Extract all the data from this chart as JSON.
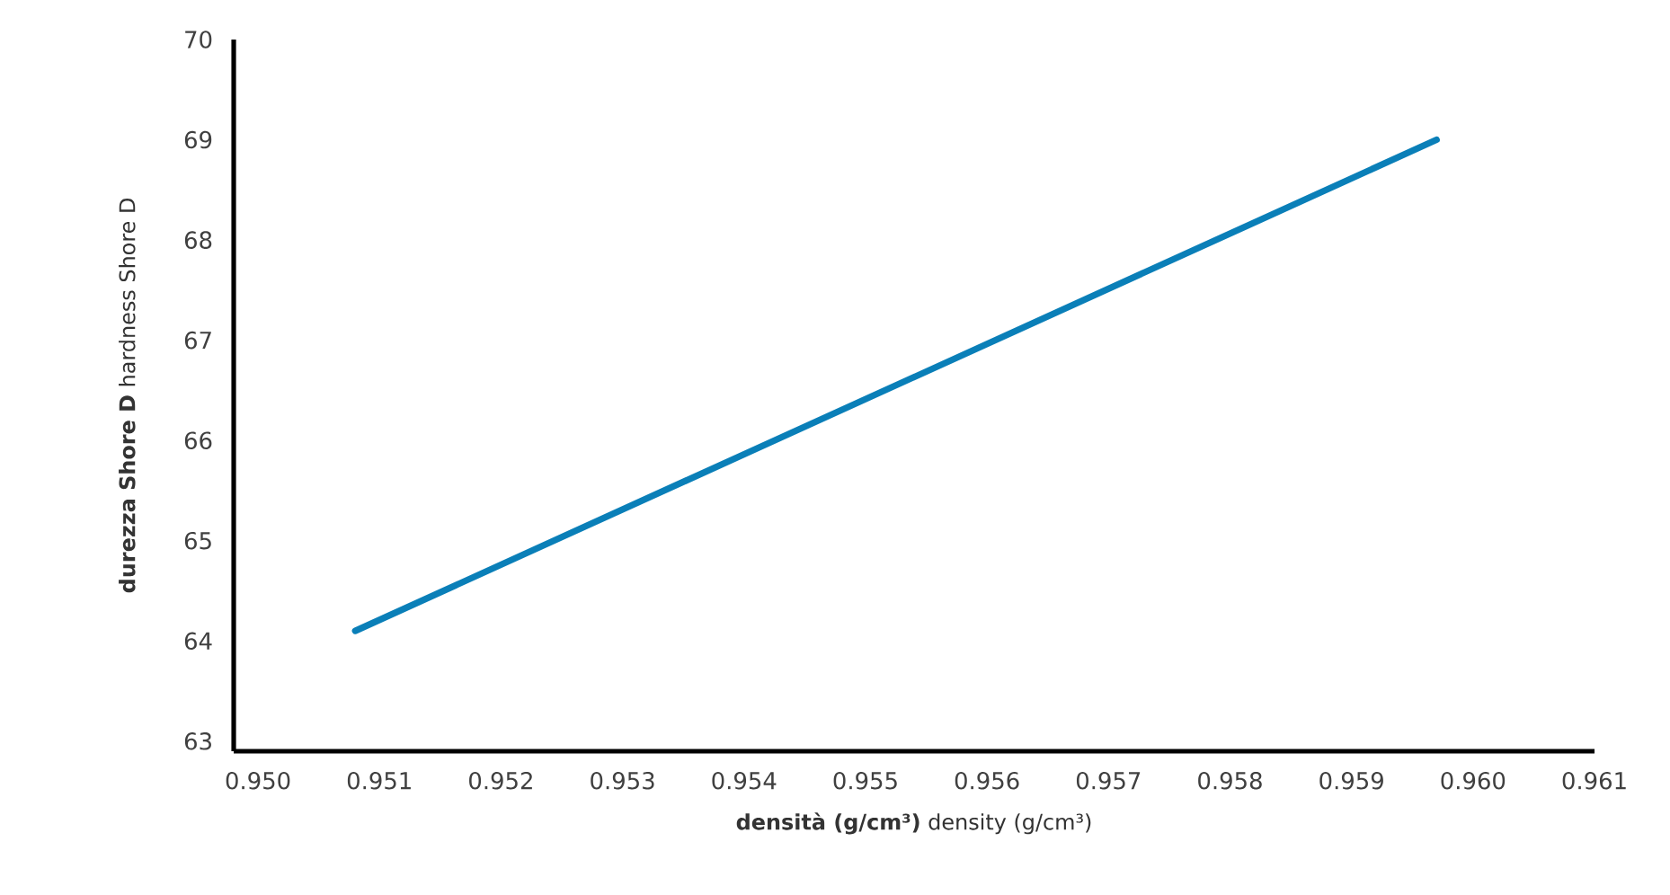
{
  "chart_data": {
    "type": "line",
    "xlabel": "**densità (g/cm³)**  density (g/cm³)",
    "ylabel": "**durezza Shore D**  hardness Shore D",
    "x": [
      0.9508,
      0.9597
    ],
    "series": [
      {
        "color": "#0a7fb8",
        "values": [
          64.1,
          69.0
        ]
      }
    ],
    "xlim": [
      0.9498,
      0.961
    ],
    "ylim": [
      62.9,
      70
    ],
    "xticks": [
      {
        "value": 0.95,
        "label": "0.950"
      },
      0.951,
      0.952,
      0.953,
      0.954,
      0.955,
      0.956,
      0.957,
      0.958,
      0.959,
      {
        "value": 0.96,
        "label": "0.960"
      },
      0.961
    ],
    "yticks": [
      63,
      64,
      65,
      66,
      67,
      68,
      69,
      70
    ],
    "marker": "none",
    "line_style": "solid"
  }
}
